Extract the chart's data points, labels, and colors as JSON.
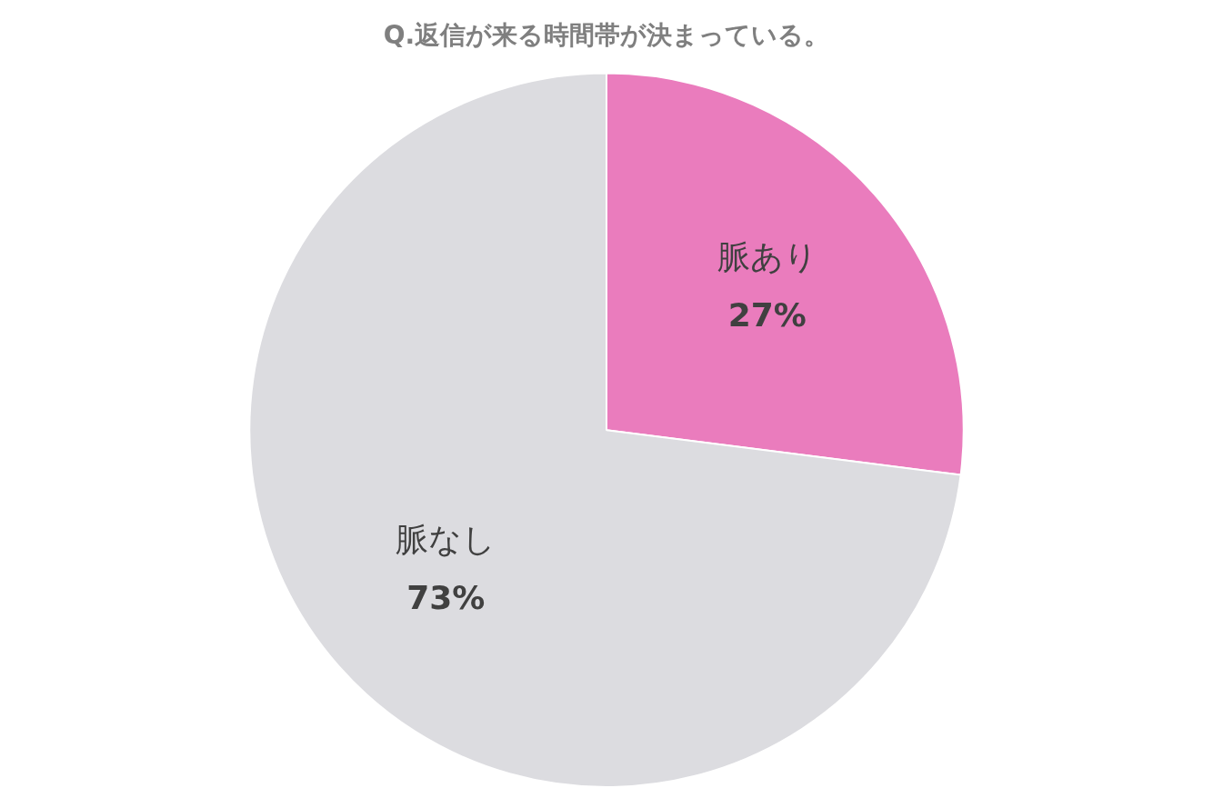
{
  "chart_data": {
    "type": "pie",
    "title": "Q.返信が来る時間帯が決まっている。",
    "categories": [
      "脈あり",
      "脈なし"
    ],
    "values": [
      27,
      73
    ],
    "value_labels": [
      "27%",
      "73%"
    ],
    "colors": [
      "#ea7cbd",
      "#dcdce0"
    ],
    "legend": false
  }
}
